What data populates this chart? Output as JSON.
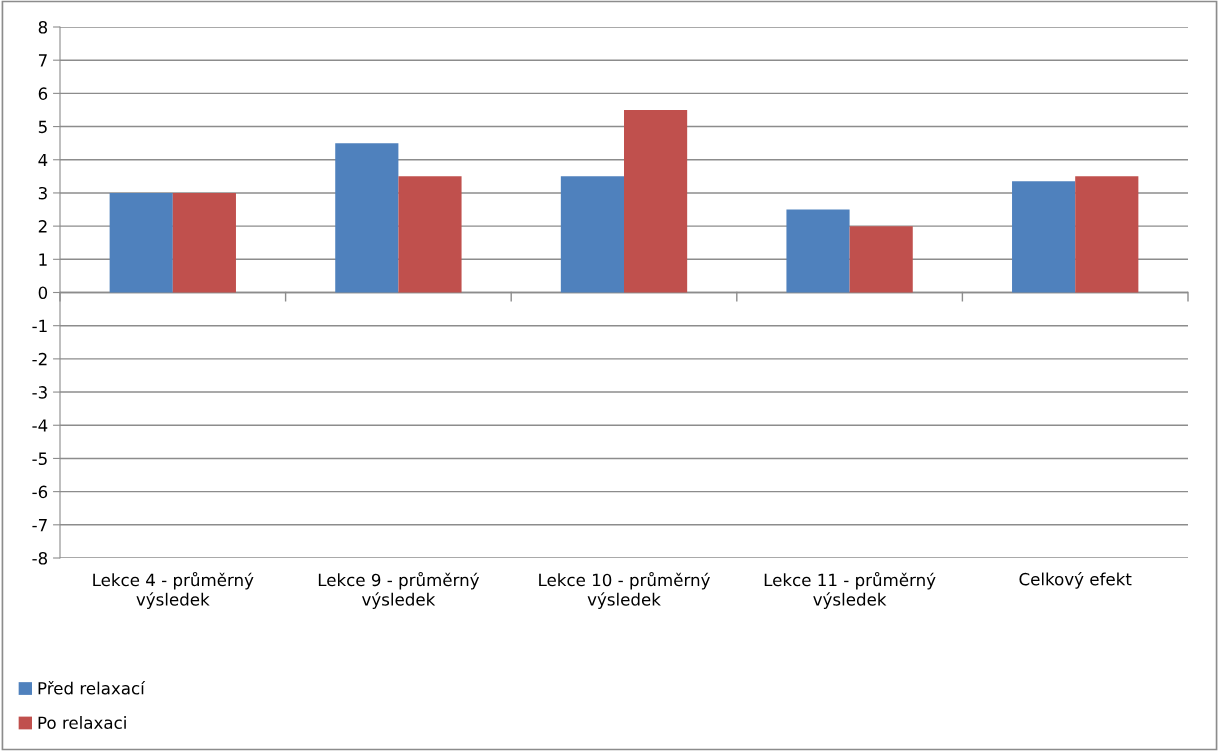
{
  "chart_data": {
    "type": "bar",
    "categories": [
      "Lekce 4 - průměrný výsledek",
      "Lekce 9 - průměrný výsledek",
      "Lekce 10 - průměrný výsledek",
      "Lekce 11 - průměrný výsledek",
      "Celkový efekt"
    ],
    "series": [
      {
        "name": "Před relaxací",
        "color": "#4f81bd",
        "values": [
          3,
          4.5,
          3.5,
          2.5,
          3.35
        ]
      },
      {
        "name": "Po relaxaci",
        "color": "#c0504d",
        "values": [
          3,
          3.5,
          5.5,
          2,
          3.5
        ]
      }
    ],
    "ylim": [
      -8,
      8
    ],
    "yticks": [
      -8,
      -7,
      -6,
      -5,
      -4,
      -3,
      -2,
      -1,
      0,
      1,
      2,
      3,
      4,
      5,
      6,
      7,
      8
    ],
    "grid": "y",
    "legend": "bottom left"
  }
}
